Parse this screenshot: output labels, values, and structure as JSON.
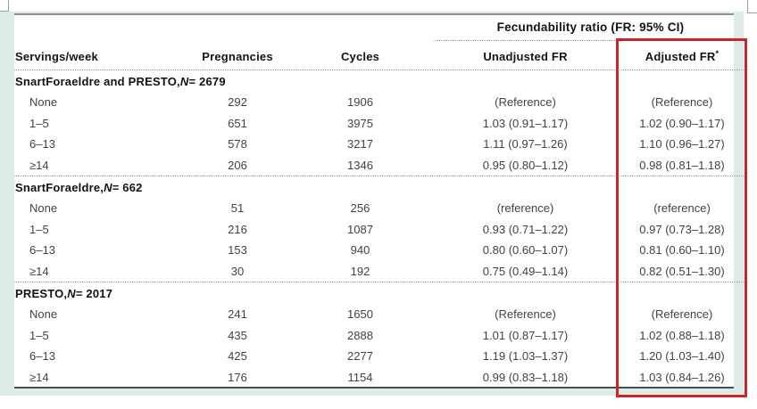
{
  "header": {
    "group_header": "Fecundability ratio (FR: 95% CI)",
    "columns": {
      "servings": "Servings/week",
      "pregnancies": "Pregnancies",
      "cycles": "Cycles",
      "unadjusted": "Unadjusted FR",
      "adjusted": "Adjusted FR",
      "adjusted_sup": "*"
    }
  },
  "sections": [
    {
      "title_prefix": "SnartForaeldre and PRESTO, ",
      "title_n": "N",
      "title_rest": " = 2679",
      "rows": [
        {
          "label": "None",
          "pregnancies": "292",
          "cycles": "1906",
          "unadjusted": "(Reference)",
          "adjusted": "(Reference)"
        },
        {
          "label": "1–5",
          "pregnancies": "651",
          "cycles": "3975",
          "unadjusted": "1.03 (0.91–1.17)",
          "adjusted": "1.02 (0.90–1.17)"
        },
        {
          "label": "6–13",
          "pregnancies": "578",
          "cycles": "3217",
          "unadjusted": "1.11 (0.97–1.26)",
          "adjusted": "1.10 (0.96–1.27)"
        },
        {
          "label": "≥14",
          "pregnancies": "206",
          "cycles": "1346",
          "unadjusted": "0.95 (0.80–1.12)",
          "adjusted": "0.98 (0.81–1.18)"
        }
      ]
    },
    {
      "title_prefix": "SnartForaeldre, ",
      "title_n": "N",
      "title_rest": " = 662",
      "rows": [
        {
          "label": "None",
          "pregnancies": "51",
          "cycles": "256",
          "unadjusted": "(reference)",
          "adjusted": "(reference)"
        },
        {
          "label": "1–5",
          "pregnancies": "216",
          "cycles": "1087",
          "unadjusted": "0.93 (0.71–1.22)",
          "adjusted": "0.97 (0.73–1.28)"
        },
        {
          "label": "6–13",
          "pregnancies": "153",
          "cycles": "940",
          "unadjusted": "0.80 (0.60–1.07)",
          "adjusted": "0.81 (0.60–1.10)"
        },
        {
          "label": "≥14",
          "pregnancies": "30",
          "cycles": "192",
          "unadjusted": "0.75 (0.49–1.14)",
          "adjusted": "0.82 (0.51–1.30)"
        }
      ]
    },
    {
      "title_prefix": "PRESTO, ",
      "title_n": "N",
      "title_rest": " = 2017",
      "rows": [
        {
          "label": "None",
          "pregnancies": "241",
          "cycles": "1650",
          "unadjusted": "(Reference)",
          "adjusted": "(Reference)"
        },
        {
          "label": "1–5",
          "pregnancies": "435",
          "cycles": "2888",
          "unadjusted": "1.01 (0.87–1.17)",
          "adjusted": "1.02 (0.88–1.18)"
        },
        {
          "label": "6–13",
          "pregnancies": "425",
          "cycles": "2277",
          "unadjusted": "1.19 (1.03–1.37)",
          "adjusted": "1.20 (1.03–1.40)"
        },
        {
          "label": "≥14",
          "pregnancies": "176",
          "cycles": "1154",
          "unadjusted": "0.99 (0.83–1.18)",
          "adjusted": "1.03 (0.84–1.26)"
        }
      ]
    }
  ],
  "annotation": {
    "highlight_color": "#ce2424",
    "panel_color": "#dcebe7"
  }
}
